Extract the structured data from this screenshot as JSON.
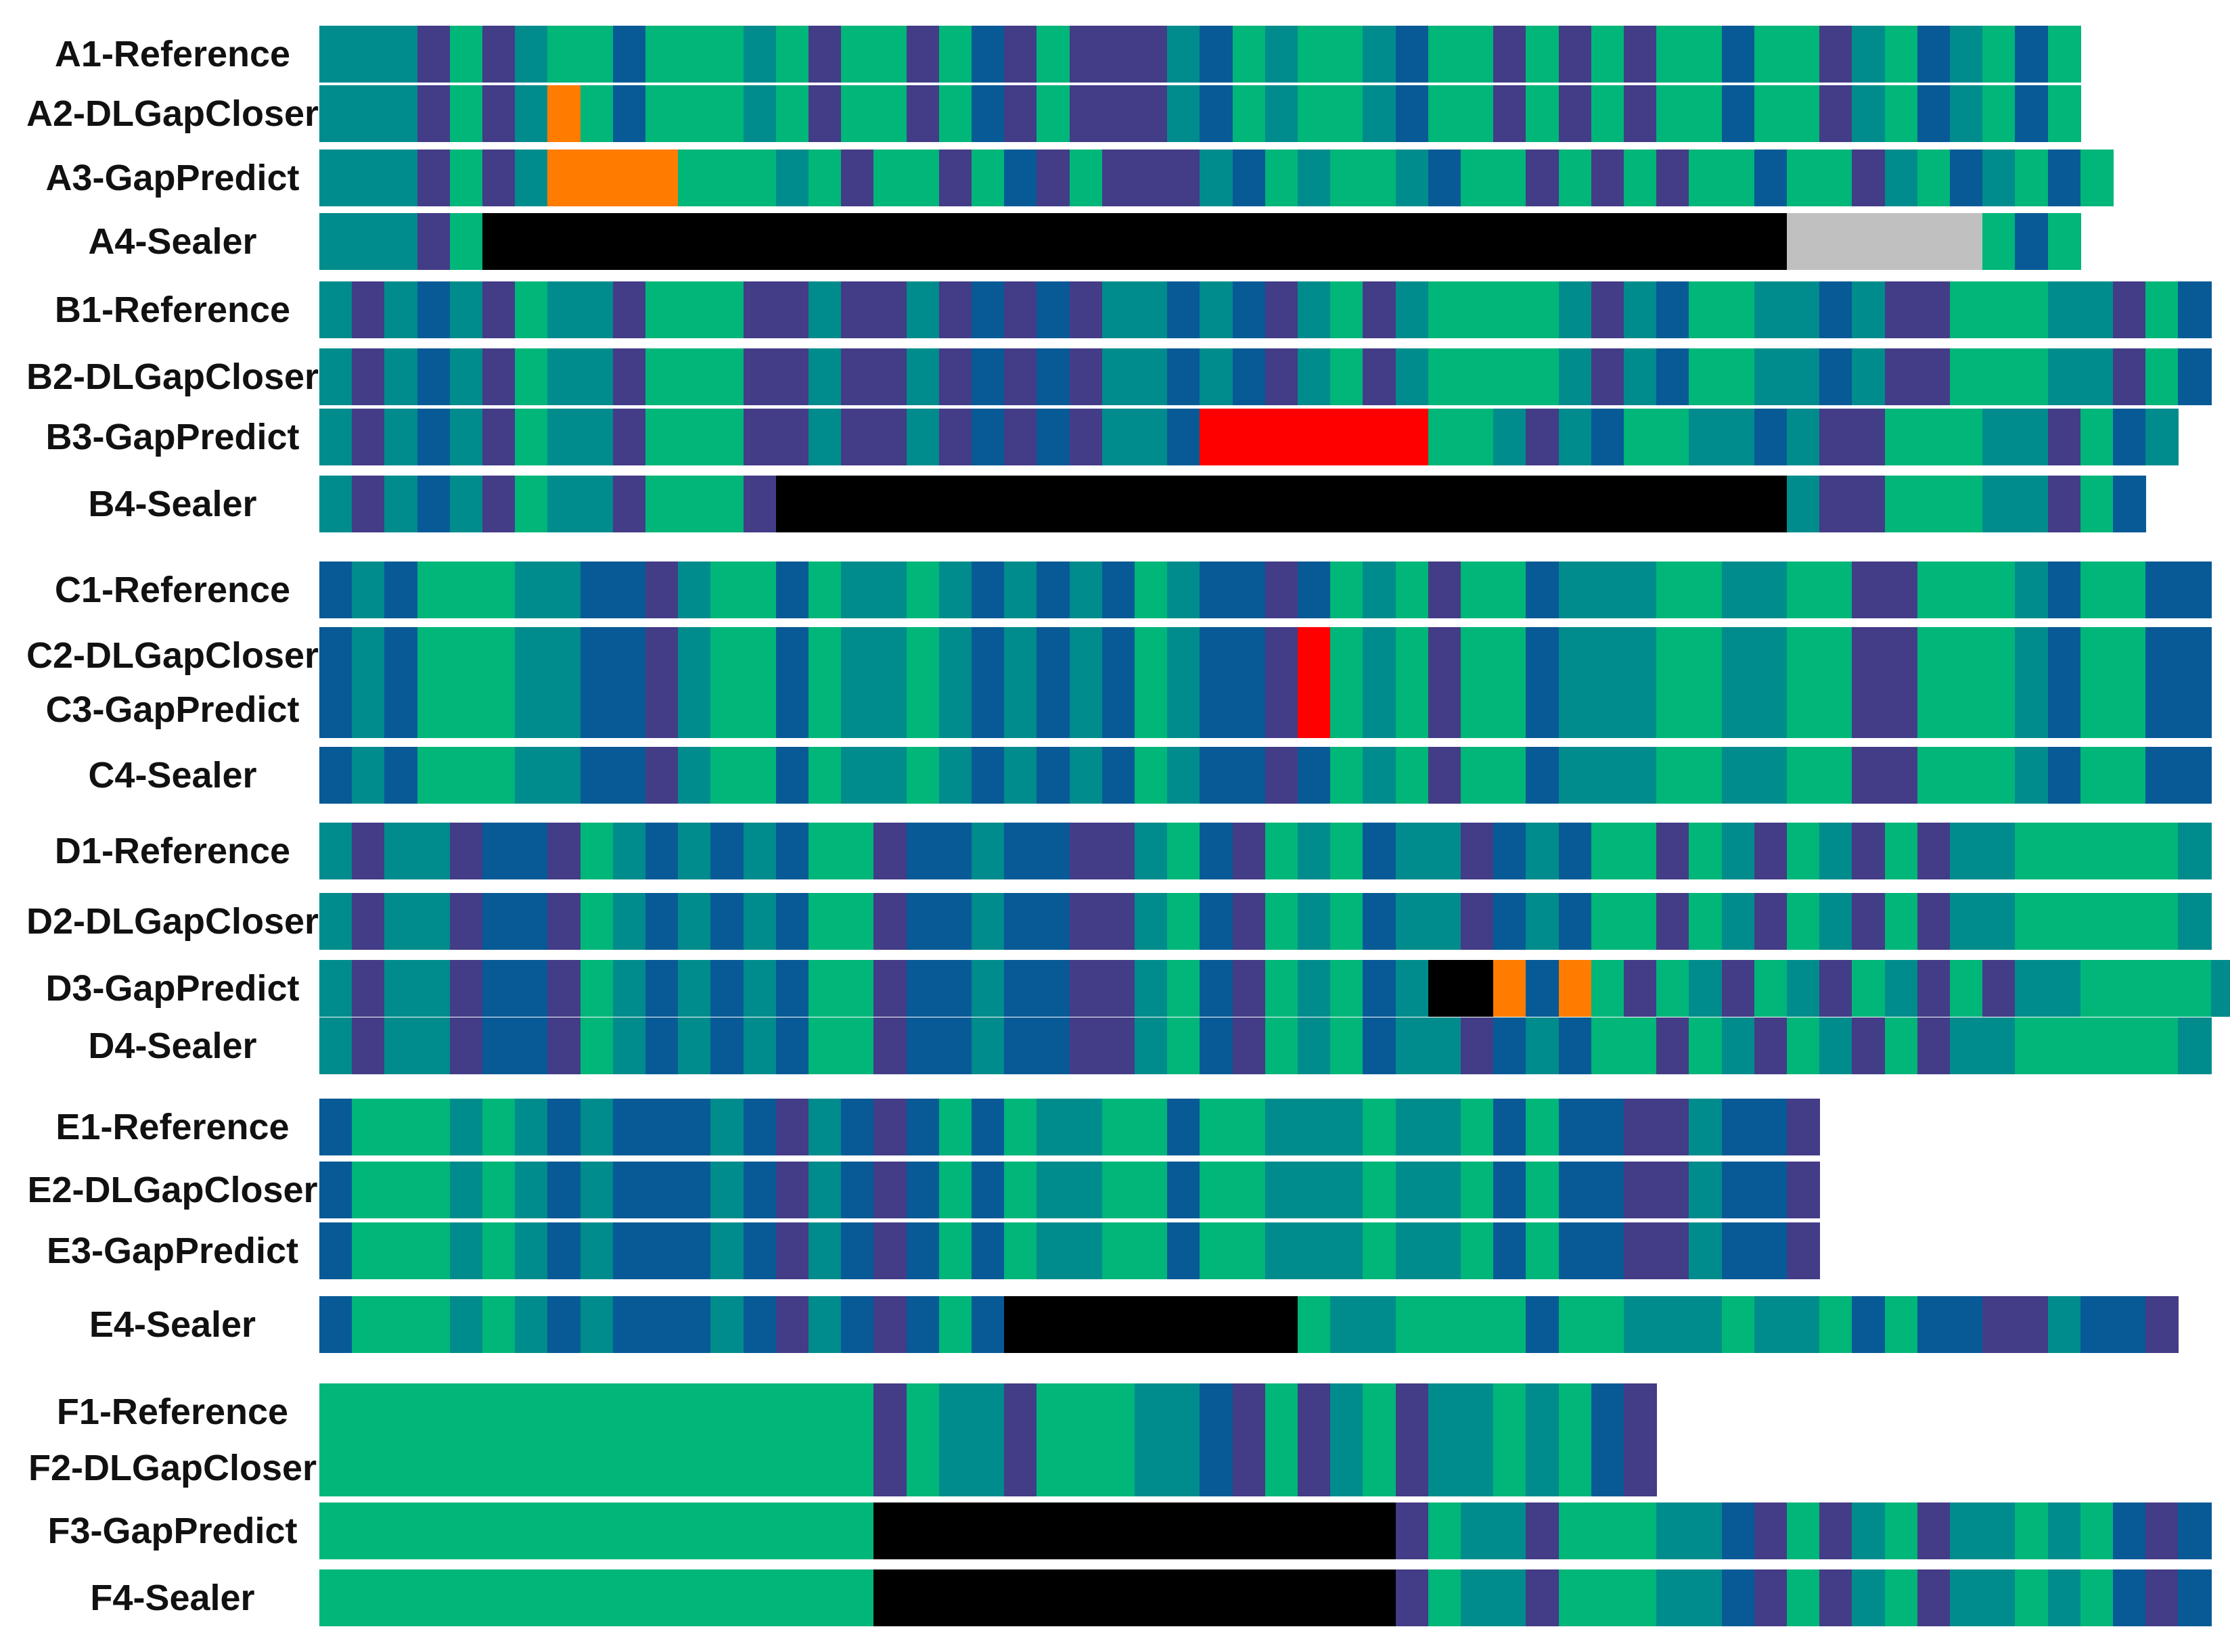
{
  "colors": {
    "T": "#008C8C",
    "P": "#433C87",
    "G": "#00B679",
    "B": "#075A96",
    "O": "#FF7C00",
    "R": "#FF0000",
    "K": "#000000",
    "Y": "#C0C0C0"
  },
  "groups": [
    {
      "id": "A",
      "tracks": [
        {
          "label": "A1-Reference",
          "pattern": "TTTPGPTGGBGGGTGPGGPGBPGPPPTBGTGGTBGGPGPGPGGBGGPTGBTGBG"
        },
        {
          "label": "A2-DLGapCloser",
          "pattern": "TTTPGPTOGBGGGTGPGGPGBPGPPPTBGTGGTBGGPGPGPGGBGGPTGBTGBG"
        },
        {
          "label": "A3-GapPredict",
          "pattern": "TTTPGPTOOOOGGGTGPGGPGBPGPPPTBGTGGTBGGPGPGPGGBGGPTGBTGBG"
        },
        {
          "label": "A4-Sealer",
          "pattern": "TTTPGKKKKKKKKKKKKKKKKKKKKKKKKKKKKKKKKKKKKKKKKYYYYYYGBG"
        }
      ]
    },
    {
      "id": "B",
      "tracks": [
        {
          "label": "B1-Reference",
          "pattern": "TPTBTPGTTPGGGPPTPPTPBPBPTTBTBPTGPTGGGGTPTBGGTTBTPPGGGTTPGB"
        },
        {
          "label": "B2-DLGapCloser",
          "pattern": "TPTBTPGTTPGGGPPTPPTPBPBPTTBTBPTGPTGGGGTPTBGGTTBTPPGGGTTPGB"
        },
        {
          "label": "B3-GapPredict",
          "pattern": "TPTBTPGTTPGGGPPTPPTPBPBPTTBRRRRRRRGGTPTBGGTTBTPPGGGTTPGBT"
        },
        {
          "label": "B4-Sealer",
          "pattern": "TPTBTPGTTPGGGPKKKKKKKKKKKKKKKKKKKKKKKKKKKKKKKTPPGGGTTPGB"
        }
      ]
    },
    {
      "id": "C",
      "tracks": [
        {
          "label": "C1-Reference",
          "pattern": "BTBGGGTTBBPTGGBGTTGTBTBTBGTBBPBGTGPGGBTTTGGTTGGPPGGGTBGGBB"
        },
        {
          "label": "C2-DLGapCloser",
          "pattern": "BTBGGGTTBBPTGGBGTTGTBTBTBGTBBPRGTGPGGBTTTGGTTGGPPGGGTBGGBB"
        },
        {
          "label": "C3-GapPredict",
          "pattern": "BTBGGGTTBBPTGGBGTTGTBTBTBGTBBPRGTGPGGBTTTGGTTGGPPGGGTBGGBB"
        },
        {
          "label": "C4-Sealer",
          "pattern": "BTBGGGTTBBPTGGBGTTGTBTBTBGTBBPBGTGPGGBTTTGGTTGGPPGGGTBGGBB"
        }
      ]
    },
    {
      "id": "D",
      "tracks": [
        {
          "label": "D1-Reference",
          "pattern": "TPTTPBBPGTBTBTBGGPBBTBBPPTGBPGTGBTTPBTBGGPGTPGTPGPTTGGGGGT"
        },
        {
          "label": "D2-DLGapCloser",
          "pattern": "TPTTPBBPGTBTBTBGGPBBTBBPPTGBPGTGBTTPBTBGGPGTPGTPGPTTGGGGGT"
        },
        {
          "label": "D3-GapPredict",
          "pattern": "TPTTPBBPGTBTBTBGGPBBTBBPPTGBPGTGBTKKOBOGPGTPGTPGTPGPTTGGGGTG"
        },
        {
          "label": "D4-Sealer",
          "pattern": "TPTTPBBPGTBTBTBGGPBBTBBPPTGBPGTGBTTPBTBGGPGTPGTPGPTTGGGGGT"
        }
      ]
    },
    {
      "id": "E",
      "tracks": [
        {
          "label": "E1-Reference",
          "pattern": "BGGGTGTBTBBBTBPTBPBGBGTTGGBGGTTTGTTGBGBBPPTBBP"
        },
        {
          "label": "E2-DLGapCloser",
          "pattern": "BGGGTGTBTBBBTBPTBPBGBGTTGGBGGTTTGTTGBGBBPPTBBP"
        },
        {
          "label": "E3-GapPredict",
          "pattern": "BGGGTGTBTBBBTBPTBPBGBGTTGGBGGTTTGTTGBGBBPPTBBP"
        },
        {
          "label": "E4-Sealer",
          "pattern": "BGGGTGTBTBBBTBPTBPBGBKKKKKKKKKGTTGGGGBGGTTTGTTGBGBBPPTBBP"
        }
      ]
    },
    {
      "id": "F",
      "tracks": [
        {
          "label": "F1-Reference",
          "pattern": "GGGGGGGGGGGGGGGGGPGTTPGGGTTBPGPTGPTTGTGBP"
        },
        {
          "label": "F2-DLGapCloser",
          "pattern": "GGGGGGGGGGGGGGGGGPGTTPGGGTTBPGPTGPTTGTGBP"
        },
        {
          "label": "F3-GapPredict",
          "pattern": "GGGGGGGGGGGGGGGGGKKKKKKKKKKKKKKKKPGTTPGGGTTBPGPTGPTTGTGBPB"
        },
        {
          "label": "F4-Sealer",
          "pattern": "GGGGGGGGGGGGGGGGGKKKKKKKKKKKKKKKKPGTTPGGGTTBPGPTGPTTGTGBPB"
        }
      ]
    }
  ]
}
